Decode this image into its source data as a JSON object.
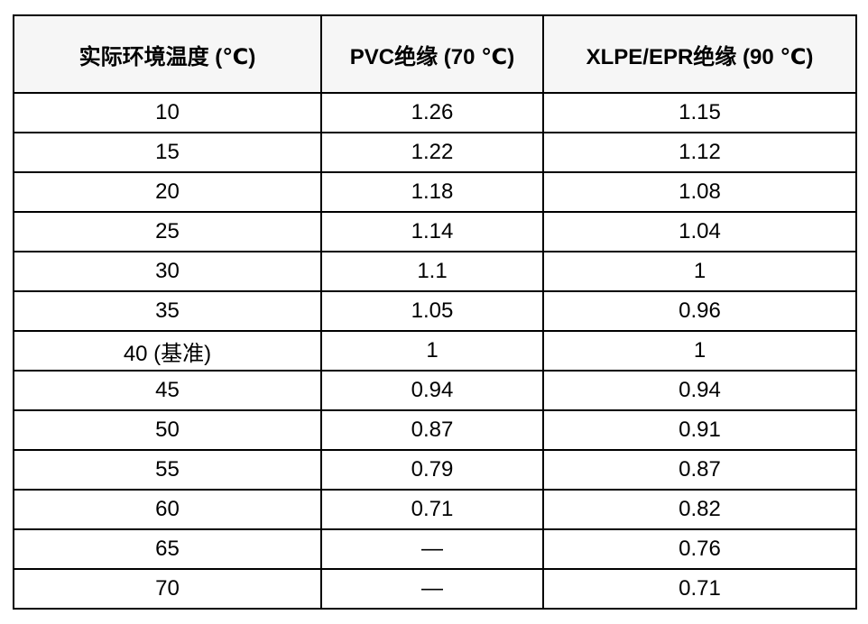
{
  "table": {
    "headers": [
      "实际环境温度 (℃)",
      "PVC绝缘 (70 ℃)",
      "XLPE/EPR绝缘 (90 ℃)"
    ],
    "rows": [
      [
        "10",
        "1.26",
        "1.15"
      ],
      [
        "15",
        "1.22",
        "1.12"
      ],
      [
        "20",
        "1.18",
        "1.08"
      ],
      [
        "25",
        "1.14",
        "1.04"
      ],
      [
        "30",
        "1.1",
        "1"
      ],
      [
        "35",
        "1.05",
        "0.96"
      ],
      [
        "40 (基准)",
        "1",
        "1"
      ],
      [
        "45",
        "0.94",
        "0.94"
      ],
      [
        "50",
        "0.87",
        "0.91"
      ],
      [
        "55",
        "0.79",
        "0.87"
      ],
      [
        "60",
        "0.71",
        "0.82"
      ],
      [
        "65",
        "—",
        "0.76"
      ],
      [
        "70",
        "—",
        "0.71"
      ]
    ]
  },
  "colors": {
    "page_bg": "#ffffff",
    "header_bg": "#f6f6f6",
    "border": "#000000",
    "text": "#000000"
  }
}
